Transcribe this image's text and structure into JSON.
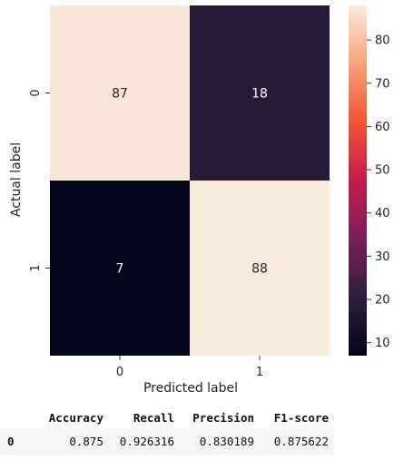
{
  "chart_data": {
    "type": "heatmap",
    "title": "",
    "xlabel": "Predicted label",
    "ylabel": "Actual label",
    "x_categories": [
      "0",
      "1"
    ],
    "y_categories": [
      "0",
      "1"
    ],
    "values": [
      [
        87,
        18
      ],
      [
        7,
        88
      ]
    ],
    "colorbar": {
      "range": [
        7,
        88
      ],
      "ticks": [
        10,
        20,
        30,
        40,
        50,
        60,
        70,
        80
      ],
      "colormap": "rocket",
      "colors": [
        "#03051a",
        "#2f1e3f",
        "#7a1e5a",
        "#c21c4a",
        "#ef5536",
        "#f6a27a",
        "#faebdd"
      ]
    }
  },
  "metrics_table": {
    "columns": [
      "Accuracy",
      "Recall",
      "Precision",
      "F1-score"
    ],
    "rows": [
      {
        "index": "0",
        "values": [
          "0.875",
          "0.926316",
          "0.830189",
          "0.875622"
        ]
      }
    ]
  }
}
